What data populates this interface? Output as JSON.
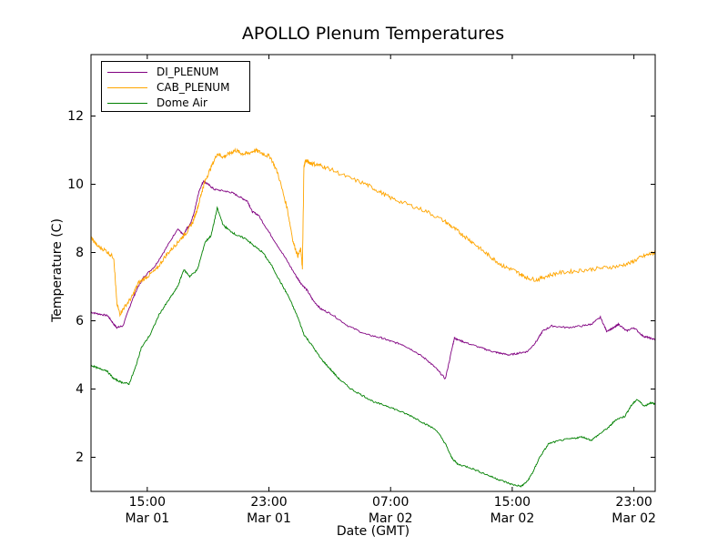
{
  "chart_data": {
    "type": "line",
    "title": "APOLLO Plenum Temperatures",
    "xlabel": "Date (GMT)",
    "ylabel": "Temperature (C)",
    "x_unit": "hours since Mar 01 00:00 GMT",
    "xlim": [
      11.3,
      48.4
    ],
    "ylim": [
      1,
      13.8
    ],
    "xticks": [
      {
        "value": 15,
        "line1": "15:00",
        "line2": "Mar 01"
      },
      {
        "value": 23,
        "line1": "23:00",
        "line2": "Mar 01"
      },
      {
        "value": 31,
        "line1": "07:00",
        "line2": "Mar 02"
      },
      {
        "value": 39,
        "line1": "15:00",
        "line2": "Mar 02"
      },
      {
        "value": 47,
        "line1": "23:00",
        "line2": "Mar 02"
      }
    ],
    "yticks": [
      {
        "value": 2,
        "label": "2"
      },
      {
        "value": 4,
        "label": "4"
      },
      {
        "value": 6,
        "label": "6"
      },
      {
        "value": 8,
        "label": "8"
      },
      {
        "value": 10,
        "label": "10"
      },
      {
        "value": 12,
        "label": "12"
      }
    ],
    "grid": false,
    "legend_position": "top-left",
    "series": [
      {
        "name": "DI_PLENUM",
        "color": "#800080",
        "x": [
          11.3,
          11.8,
          12.4,
          12.8,
          13.0,
          13.4,
          14.0,
          14.4,
          14.8,
          15.5,
          16.2,
          17.0,
          17.4,
          17.6,
          17.8,
          18.1,
          18.4,
          18.7,
          19.0,
          19.4,
          20.1,
          20.6,
          21.2,
          21.6,
          21.9,
          22.3,
          23.0,
          24.0,
          24.8,
          25.1,
          25.5,
          25.9,
          26.4,
          27.1,
          28.2,
          29.4,
          30.4,
          31.0,
          31.8,
          32.6,
          33.4,
          34.0,
          34.6,
          35.1,
          35.2,
          35.4,
          36.0,
          37.0,
          37.7,
          38.2,
          38.8,
          39.4,
          40.0,
          40.6,
          41.0,
          41.6,
          42.6,
          43.6,
          44.2,
          44.8,
          45.2,
          45.7,
          46.0,
          46.5,
          47.0,
          47.6,
          48.0,
          48.4
        ],
        "values": [
          6.25,
          6.2,
          6.15,
          5.9,
          5.8,
          5.85,
          6.6,
          7.0,
          7.3,
          7.6,
          8.1,
          8.7,
          8.5,
          8.7,
          8.8,
          9.2,
          9.8,
          10.1,
          10.0,
          9.85,
          9.8,
          9.75,
          9.6,
          9.5,
          9.2,
          9.1,
          8.6,
          7.9,
          7.3,
          7.1,
          6.9,
          6.6,
          6.35,
          6.2,
          5.85,
          5.6,
          5.5,
          5.4,
          5.3,
          5.1,
          4.85,
          4.6,
          4.3,
          5.3,
          5.5,
          5.45,
          5.35,
          5.2,
          5.1,
          5.05,
          5.0,
          5.05,
          5.1,
          5.4,
          5.7,
          5.85,
          5.8,
          5.85,
          5.9,
          6.1,
          5.7,
          5.8,
          5.9,
          5.7,
          5.8,
          5.55,
          5.5,
          5.45
        ],
        "label_note": "legend"
      },
      {
        "name": "CAB_PLENUM",
        "color": "#ffa500",
        "x": [
          11.3,
          11.7,
          12.3,
          12.8,
          13.0,
          13.2,
          13.5,
          14.0,
          14.4,
          15.0,
          15.6,
          16.2,
          16.8,
          17.2,
          17.6,
          18.0,
          18.3,
          18.6,
          18.8,
          19.2,
          19.6,
          20.0,
          20.4,
          20.8,
          21.2,
          21.6,
          22.1,
          22.6,
          23.1,
          23.6,
          24.2,
          24.6,
          24.9,
          25.1,
          25.2,
          25.3,
          25.4,
          25.6,
          25.9,
          26.4,
          27.0,
          28.2,
          29.4,
          30.2,
          31.0,
          32.2,
          33.4,
          34.6,
          35.2,
          35.8,
          36.4,
          37.2,
          37.8,
          38.4,
          39.0,
          39.6,
          40.0,
          40.6,
          41.2,
          42.0,
          43.0,
          44.0,
          45.0,
          46.0,
          46.8,
          47.4,
          48.0,
          48.4
        ],
        "values": [
          8.45,
          8.2,
          8.05,
          7.85,
          6.5,
          6.2,
          6.4,
          6.7,
          7.1,
          7.3,
          7.5,
          7.9,
          8.2,
          8.4,
          8.6,
          8.9,
          9.3,
          9.8,
          10.1,
          10.5,
          10.9,
          10.8,
          10.9,
          11.0,
          10.9,
          10.9,
          11.0,
          10.9,
          10.8,
          10.3,
          9.3,
          8.3,
          7.9,
          8.1,
          7.5,
          10.5,
          10.7,
          10.65,
          10.6,
          10.55,
          10.45,
          10.2,
          10.0,
          9.8,
          9.6,
          9.4,
          9.2,
          8.9,
          8.7,
          8.5,
          8.3,
          8.0,
          7.8,
          7.6,
          7.5,
          7.35,
          7.25,
          7.2,
          7.3,
          7.4,
          7.45,
          7.5,
          7.55,
          7.6,
          7.7,
          7.85,
          7.95,
          8.0
        ],
        "label_note": "legend"
      },
      {
        "name": "Dome Air",
        "color": "#008000",
        "x": [
          11.3,
          11.8,
          12.3,
          12.8,
          13.3,
          13.8,
          14.2,
          14.6,
          15.2,
          15.8,
          16.4,
          17.0,
          17.4,
          17.8,
          18.3,
          18.8,
          19.2,
          19.6,
          20.0,
          20.4,
          20.9,
          21.5,
          22.0,
          22.6,
          23.2,
          23.8,
          24.3,
          24.9,
          25.3,
          25.8,
          26.4,
          27.0,
          27.6,
          28.4,
          29.2,
          30.0,
          30.8,
          31.6,
          32.4,
          33.2,
          34.0,
          34.6,
          35.0,
          35.4,
          36.2,
          37.0,
          37.8,
          38.4,
          39.0,
          39.6,
          40.0,
          40.4,
          40.8,
          41.4,
          42.2,
          43.0,
          43.6,
          44.2,
          44.8,
          45.4,
          45.8,
          46.4,
          46.8,
          47.2,
          47.7,
          48.1,
          48.4
        ],
        "values": [
          4.7,
          4.6,
          4.55,
          4.3,
          4.2,
          4.15,
          4.6,
          5.2,
          5.6,
          6.2,
          6.6,
          7.0,
          7.5,
          7.3,
          7.5,
          8.3,
          8.5,
          9.3,
          8.8,
          8.65,
          8.5,
          8.4,
          8.2,
          8.0,
          7.6,
          7.1,
          6.7,
          6.1,
          5.6,
          5.3,
          4.9,
          4.6,
          4.3,
          4.0,
          3.8,
          3.6,
          3.5,
          3.35,
          3.2,
          3.0,
          2.8,
          2.4,
          2.0,
          1.8,
          1.7,
          1.55,
          1.4,
          1.3,
          1.2,
          1.15,
          1.3,
          1.6,
          2.0,
          2.4,
          2.5,
          2.55,
          2.6,
          2.5,
          2.7,
          2.9,
          3.1,
          3.2,
          3.5,
          3.7,
          3.5,
          3.6,
          3.55
        ],
        "label_note": "legend"
      }
    ]
  }
}
